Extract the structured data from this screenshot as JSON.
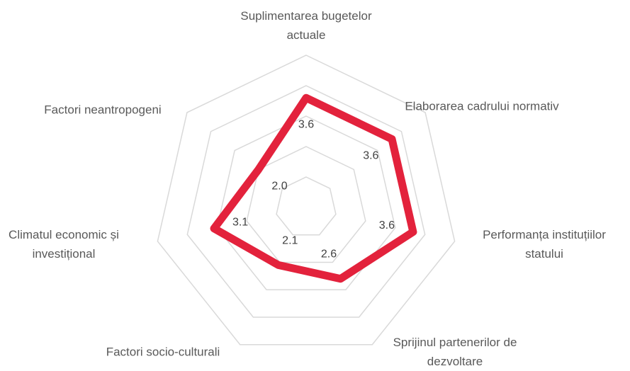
{
  "chart_data": {
    "type": "radar",
    "categories": [
      "Suplimentarea bugetelor actuale",
      "Elaborarea cadrului normativ",
      "Performanța instituțiilor statului",
      "Sprijinul partenerilor de dezvoltare",
      "Factori socio-culturali",
      "Climatul economic și investițional",
      "Factori neantropogeni"
    ],
    "values": [
      3.6,
      3.6,
      3.6,
      2.6,
      2.1,
      3.1,
      2.0
    ],
    "value_labels": [
      "3.6",
      "3.6",
      "3.6",
      "2.6",
      "2.1",
      "3.1",
      "2.0"
    ],
    "color": "#e3223c",
    "ylim": [
      0,
      5
    ],
    "yticks": [
      1,
      2,
      3,
      4,
      5
    ],
    "grid": true
  }
}
